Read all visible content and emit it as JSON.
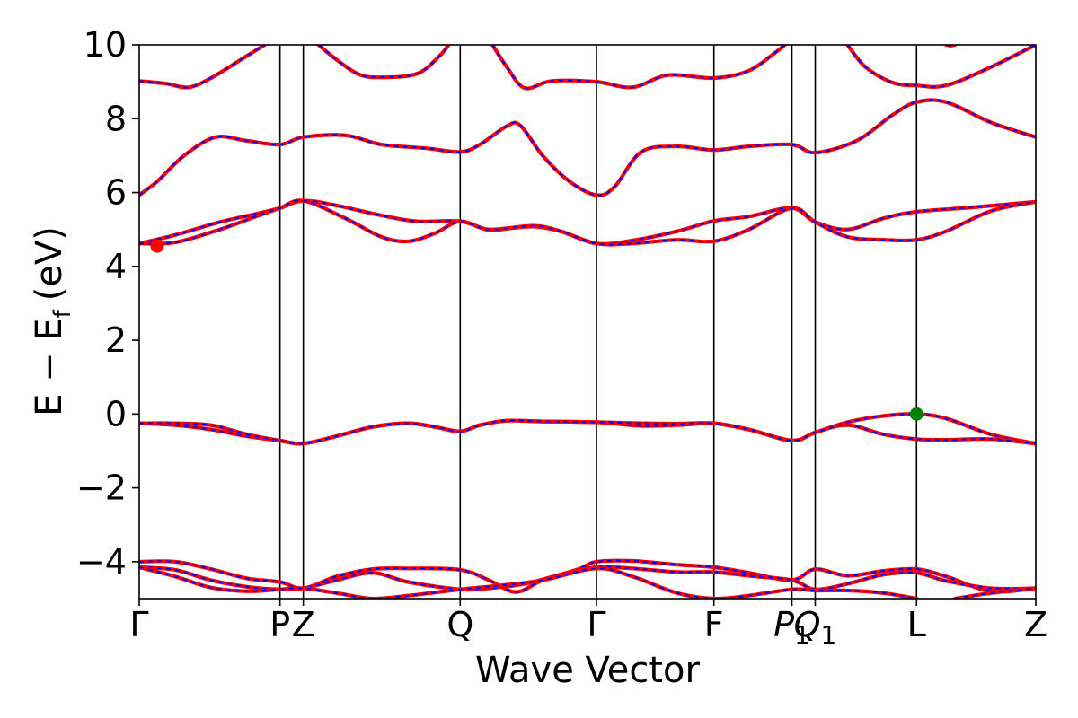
{
  "chart_data": {
    "type": "line",
    "title": "",
    "xlabel": "Wave Vector",
    "ylabel": "E − E_f (eV)",
    "ylabel_parts": {
      "main": "E − E",
      "sub": "f",
      "unit": "(eV)"
    },
    "ylim": [
      -5,
      10
    ],
    "xlim": [
      0,
      1
    ],
    "grid": false,
    "legend": "none",
    "colors": {
      "line": "#ff0000",
      "line_overlay": "#0000ff",
      "marker_red": "#ff0000",
      "marker_green": "#008000",
      "frame": "#000000"
    },
    "yticks": [
      {
        "value": -4,
        "label": "−4"
      },
      {
        "value": -2,
        "label": "−2"
      },
      {
        "value": 0,
        "label": "0"
      },
      {
        "value": 2,
        "label": "2"
      },
      {
        "value": 4,
        "label": "4"
      },
      {
        "value": 6,
        "label": "6"
      },
      {
        "value": 8,
        "label": "8"
      },
      {
        "value": 10,
        "label": "10"
      }
    ],
    "kpoints": [
      {
        "label": "Γ",
        "x": 0.0
      },
      {
        "label": "P",
        "x": 0.157,
        "italic": false
      },
      {
        "label": "Z",
        "x": 0.183
      },
      {
        "label": "Q",
        "x": 0.358
      },
      {
        "label": "Γ",
        "x": 0.51
      },
      {
        "label": "F",
        "x": 0.641
      },
      {
        "label": "P",
        "sub": "1",
        "x": 0.728,
        "italic": true
      },
      {
        "label": "Q",
        "sub": "1",
        "x": 0.754,
        "italic": true
      },
      {
        "label": "L",
        "x": 0.867
      },
      {
        "label": "Z",
        "x": 1.0
      }
    ],
    "bands": [
      [
        [
          0,
          9.02
        ],
        [
          0.03,
          8.95
        ],
        [
          0.055,
          8.85
        ],
        [
          0.08,
          9.1
        ],
        [
          0.12,
          9.7
        ],
        [
          0.14,
          10.0
        ]
      ],
      [
        [
          0.2,
          10.0
        ],
        [
          0.22,
          9.6
        ],
        [
          0.245,
          9.2
        ],
        [
          0.27,
          9.12
        ],
        [
          0.31,
          9.22
        ],
        [
          0.335,
          9.7
        ],
        [
          0.345,
          10.0
        ]
      ],
      [
        [
          0.394,
          10.0
        ],
        [
          0.41,
          9.4
        ],
        [
          0.43,
          8.83
        ],
        [
          0.46,
          9.02
        ],
        [
          0.51,
          9.0
        ],
        [
          0.55,
          8.85
        ],
        [
          0.59,
          9.18
        ],
        [
          0.641,
          9.1
        ],
        [
          0.68,
          9.3
        ],
        [
          0.71,
          9.8
        ],
        [
          0.72,
          10.0
        ]
      ],
      [
        [
          0.79,
          10.0
        ],
        [
          0.81,
          9.4
        ],
        [
          0.84,
          8.98
        ],
        [
          0.867,
          8.9
        ],
        [
          0.9,
          8.9
        ],
        [
          0.95,
          9.4
        ],
        [
          1.0,
          10.0
        ]
      ],
      [
        [
          0.9,
          10.0
        ],
        [
          0.905,
          9.98
        ],
        [
          0.91,
          10.0
        ]
      ],
      [
        [
          0,
          5.93
        ],
        [
          0.02,
          6.3
        ],
        [
          0.05,
          7.0
        ],
        [
          0.085,
          7.5
        ],
        [
          0.12,
          7.4
        ],
        [
          0.157,
          7.3
        ],
        [
          0.183,
          7.5
        ],
        [
          0.23,
          7.55
        ],
        [
          0.27,
          7.3
        ],
        [
          0.32,
          7.2
        ],
        [
          0.358,
          7.1
        ],
        [
          0.38,
          7.3
        ],
        [
          0.41,
          7.8
        ],
        [
          0.425,
          7.82
        ],
        [
          0.45,
          7.0
        ],
        [
          0.48,
          6.3
        ],
        [
          0.51,
          5.93
        ],
        [
          0.53,
          6.15
        ],
        [
          0.56,
          7.1
        ],
        [
          0.6,
          7.25
        ],
        [
          0.641,
          7.15
        ],
        [
          0.68,
          7.25
        ],
        [
          0.728,
          7.3
        ],
        [
          0.754,
          7.08
        ],
        [
          0.8,
          7.4
        ],
        [
          0.84,
          8.1
        ],
        [
          0.867,
          8.45
        ],
        [
          0.9,
          8.45
        ],
        [
          0.95,
          7.9
        ],
        [
          1.0,
          7.5
        ]
      ],
      [
        [
          0,
          4.62
        ],
        [
          0.04,
          4.85
        ],
        [
          0.09,
          5.2
        ],
        [
          0.13,
          5.42
        ],
        [
          0.157,
          5.58
        ],
        [
          0.183,
          5.78
        ],
        [
          0.22,
          5.65
        ],
        [
          0.27,
          5.38
        ],
        [
          0.31,
          5.22
        ],
        [
          0.358,
          5.22
        ],
        [
          0.39,
          4.98
        ],
        [
          0.41,
          5.02
        ],
        [
          0.44,
          5.08
        ],
        [
          0.47,
          4.95
        ],
        [
          0.51,
          4.62
        ],
        [
          0.55,
          4.7
        ],
        [
          0.6,
          4.95
        ],
        [
          0.641,
          5.23
        ],
        [
          0.68,
          5.35
        ],
        [
          0.728,
          5.58
        ],
        [
          0.754,
          5.2
        ],
        [
          0.79,
          5.0
        ],
        [
          0.83,
          5.3
        ],
        [
          0.867,
          5.48
        ],
        [
          0.93,
          5.6
        ],
        [
          1.0,
          5.75
        ]
      ],
      [
        [
          0,
          4.62
        ],
        [
          0.04,
          4.65
        ],
        [
          0.09,
          5.0
        ],
        [
          0.13,
          5.35
        ],
        [
          0.157,
          5.58
        ],
        [
          0.183,
          5.78
        ],
        [
          0.23,
          5.3
        ],
        [
          0.27,
          4.8
        ],
        [
          0.3,
          4.68
        ],
        [
          0.33,
          4.9
        ],
        [
          0.358,
          5.22
        ],
        [
          0.39,
          5.0
        ],
        [
          0.44,
          5.1
        ],
        [
          0.47,
          4.95
        ],
        [
          0.51,
          4.62
        ],
        [
          0.55,
          4.62
        ],
        [
          0.6,
          4.72
        ],
        [
          0.641,
          4.68
        ],
        [
          0.68,
          5.0
        ],
        [
          0.728,
          5.58
        ],
        [
          0.754,
          5.2
        ],
        [
          0.79,
          4.8
        ],
        [
          0.83,
          4.72
        ],
        [
          0.867,
          4.72
        ],
        [
          0.9,
          4.95
        ],
        [
          0.95,
          5.5
        ],
        [
          1.0,
          5.75
        ]
      ],
      [
        [
          0,
          -0.25
        ],
        [
          0.04,
          -0.3
        ],
        [
          0.08,
          -0.42
        ],
        [
          0.12,
          -0.6
        ],
        [
          0.157,
          -0.72
        ],
        [
          0.183,
          -0.8
        ],
        [
          0.22,
          -0.6
        ],
        [
          0.26,
          -0.35
        ],
        [
          0.3,
          -0.25
        ],
        [
          0.33,
          -0.35
        ],
        [
          0.358,
          -0.47
        ],
        [
          0.38,
          -0.3
        ],
        [
          0.41,
          -0.18
        ],
        [
          0.45,
          -0.2
        ],
        [
          0.51,
          -0.22
        ],
        [
          0.56,
          -0.32
        ],
        [
          0.6,
          -0.3
        ],
        [
          0.641,
          -0.25
        ],
        [
          0.68,
          -0.42
        ],
        [
          0.728,
          -0.72
        ],
        [
          0.754,
          -0.5
        ],
        [
          0.79,
          -0.22
        ],
        [
          0.83,
          -0.05
        ],
        [
          0.867,
          0.0
        ],
        [
          0.9,
          -0.12
        ],
        [
          0.95,
          -0.55
        ],
        [
          1.0,
          -0.8
        ]
      ],
      [
        [
          0,
          -0.25
        ],
        [
          0.04,
          -0.25
        ],
        [
          0.08,
          -0.3
        ],
        [
          0.12,
          -0.55
        ],
        [
          0.157,
          -0.72
        ],
        [
          0.183,
          -0.8
        ],
        [
          0.22,
          -0.6
        ],
        [
          0.26,
          -0.35
        ],
        [
          0.3,
          -0.25
        ],
        [
          0.33,
          -0.35
        ],
        [
          0.358,
          -0.47
        ],
        [
          0.38,
          -0.3
        ],
        [
          0.41,
          -0.18
        ],
        [
          0.45,
          -0.2
        ],
        [
          0.51,
          -0.22
        ],
        [
          0.56,
          -0.25
        ],
        [
          0.6,
          -0.26
        ],
        [
          0.641,
          -0.25
        ],
        [
          0.68,
          -0.42
        ],
        [
          0.728,
          -0.72
        ],
        [
          0.754,
          -0.5
        ],
        [
          0.79,
          -0.3
        ],
        [
          0.83,
          -0.55
        ],
        [
          0.867,
          -0.68
        ],
        [
          0.9,
          -0.7
        ],
        [
          0.95,
          -0.68
        ],
        [
          1.0,
          -0.8
        ]
      ],
      [
        [
          0,
          -4.0
        ],
        [
          0.04,
          -4.0
        ],
        [
          0.08,
          -4.2
        ],
        [
          0.12,
          -4.45
        ],
        [
          0.157,
          -4.55
        ],
        [
          0.183,
          -4.72
        ],
        [
          0.22,
          -4.4
        ],
        [
          0.26,
          -4.2
        ],
        [
          0.3,
          -4.18
        ],
        [
          0.358,
          -4.22
        ],
        [
          0.39,
          -4.5
        ],
        [
          0.42,
          -4.82
        ],
        [
          0.45,
          -4.5
        ],
        [
          0.49,
          -4.2
        ],
        [
          0.51,
          -4.0
        ],
        [
          0.55,
          -3.98
        ],
        [
          0.6,
          -4.08
        ],
        [
          0.641,
          -4.15
        ],
        [
          0.68,
          -4.3
        ],
        [
          0.728,
          -4.5
        ],
        [
          0.754,
          -4.2
        ],
        [
          0.79,
          -4.38
        ],
        [
          0.83,
          -4.25
        ],
        [
          0.867,
          -4.2
        ],
        [
          0.9,
          -4.4
        ],
        [
          0.95,
          -4.8
        ],
        [
          1.0,
          -4.72
        ]
      ],
      [
        [
          0,
          -4.15
        ],
        [
          0.04,
          -4.22
        ],
        [
          0.08,
          -4.5
        ],
        [
          0.12,
          -4.68
        ],
        [
          0.157,
          -4.75
        ],
        [
          0.183,
          -4.72
        ],
        [
          0.22,
          -4.5
        ],
        [
          0.26,
          -4.3
        ],
        [
          0.3,
          -4.55
        ],
        [
          0.358,
          -4.75
        ],
        [
          0.39,
          -4.72
        ],
        [
          0.43,
          -4.6
        ],
        [
          0.47,
          -4.35
        ],
        [
          0.51,
          -4.15
        ],
        [
          0.55,
          -4.18
        ],
        [
          0.6,
          -4.28
        ],
        [
          0.641,
          -4.28
        ],
        [
          0.68,
          -4.38
        ],
        [
          0.728,
          -4.5
        ],
        [
          0.754,
          -4.75
        ],
        [
          0.79,
          -4.6
        ],
        [
          0.83,
          -4.35
        ],
        [
          0.867,
          -4.3
        ],
        [
          0.9,
          -4.52
        ],
        [
          0.95,
          -4.72
        ],
        [
          1.0,
          -4.72
        ]
      ],
      [
        [
          0,
          -4.15
        ],
        [
          0.04,
          -4.4
        ],
        [
          0.08,
          -4.7
        ],
        [
          0.12,
          -4.8
        ],
        [
          0.157,
          -4.75
        ],
        [
          0.183,
          -4.72
        ],
        [
          0.22,
          -4.85
        ],
        [
          0.26,
          -5.0
        ],
        [
          0.3,
          -4.92
        ],
        [
          0.358,
          -4.75
        ],
        [
          0.4,
          -4.65
        ],
        [
          0.45,
          -4.5
        ],
        [
          0.51,
          -4.18
        ],
        [
          0.55,
          -4.4
        ],
        [
          0.6,
          -4.85
        ],
        [
          0.641,
          -5.0
        ],
        [
          0.68,
          -4.92
        ],
        [
          0.728,
          -4.75
        ],
        [
          0.754,
          -4.78
        ],
        [
          0.79,
          -4.78
        ],
        [
          0.83,
          -4.85
        ],
        [
          0.867,
          -5.0
        ]
      ],
      [
        [
          0.91,
          -5.0
        ],
        [
          0.95,
          -4.85
        ],
        [
          1.0,
          -4.72
        ]
      ]
    ],
    "markers": [
      {
        "x": 0.02,
        "y": 4.55,
        "color": "#ff0000"
      },
      {
        "x": 0.867,
        "y": 0.0,
        "color": "#008000"
      }
    ]
  }
}
